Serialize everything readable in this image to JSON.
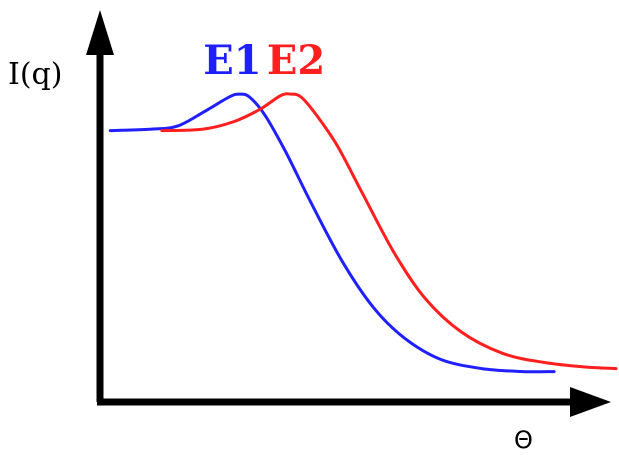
{
  "chart_data": {
    "type": "line",
    "xlabel": "Θ",
    "ylabel": "I(q)",
    "xlim": [
      0,
      100
    ],
    "ylim": [
      0,
      100
    ],
    "grid": false,
    "legend": "inline-labels-top",
    "series": [
      {
        "name": "E1",
        "color": "#1f1fff",
        "points": [
          [
            2,
            87
          ],
          [
            10,
            87.5
          ],
          [
            15,
            88.5
          ],
          [
            20,
            93
          ],
          [
            25,
            98
          ],
          [
            27,
            99
          ],
          [
            29,
            98
          ],
          [
            32,
            92
          ],
          [
            36,
            80
          ],
          [
            41,
            63
          ],
          [
            47,
            44
          ],
          [
            53,
            29
          ],
          [
            59,
            19
          ],
          [
            66,
            12
          ],
          [
            74,
            9
          ],
          [
            82,
            8
          ],
          [
            88,
            8
          ]
        ]
      },
      {
        "name": "E2",
        "color": "#ff1f1f",
        "points": [
          [
            12,
            87
          ],
          [
            20,
            87.5
          ],
          [
            26,
            90
          ],
          [
            31,
            94
          ],
          [
            35,
            98.5
          ],
          [
            37,
            99
          ],
          [
            39,
            98
          ],
          [
            42,
            92
          ],
          [
            46,
            82
          ],
          [
            51,
            66
          ],
          [
            57,
            47
          ],
          [
            63,
            32
          ],
          [
            70,
            21
          ],
          [
            78,
            14
          ],
          [
            86,
            11
          ],
          [
            94,
            9.5
          ],
          [
            100,
            9
          ]
        ]
      }
    ]
  }
}
